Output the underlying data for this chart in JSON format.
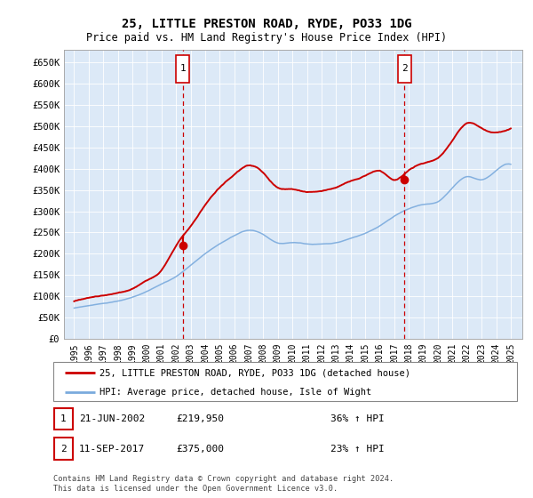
{
  "title": "25, LITTLE PRESTON ROAD, RYDE, PO33 1DG",
  "subtitle": "Price paid vs. HM Land Registry's House Price Index (HPI)",
  "title_fontsize": 10,
  "subtitle_fontsize": 8.5,
  "plot_bg_color": "#dce9f7",
  "ylim": [
    0,
    680000
  ],
  "yticks": [
    0,
    50000,
    100000,
    150000,
    200000,
    250000,
    300000,
    350000,
    400000,
    450000,
    500000,
    550000,
    600000,
    650000
  ],
  "ytick_labels": [
    "£0",
    "£50K",
    "£100K",
    "£150K",
    "£200K",
    "£250K",
    "£300K",
    "£350K",
    "£400K",
    "£450K",
    "£500K",
    "£550K",
    "£600K",
    "£650K"
  ],
  "sale1_date": "21-JUN-2002",
  "sale1_price_str": "£219,950",
  "sale1_hpi_pct": "36% ↑ HPI",
  "sale2_date": "11-SEP-2017",
  "sale2_price_str": "£375,000",
  "sale2_hpi_pct": "23% ↑ HPI",
  "legend_line1": "25, LITTLE PRESTON ROAD, RYDE, PO33 1DG (detached house)",
  "legend_line2": "HPI: Average price, detached house, Isle of Wight",
  "footer_line1": "Contains HM Land Registry data © Crown copyright and database right 2024.",
  "footer_line2": "This data is licensed under the Open Government Licence v3.0.",
  "marker1_x": 2002.47,
  "marker1_y": 219950,
  "marker2_x": 2017.69,
  "marker2_y": 375000,
  "vline1_x": 2002.47,
  "vline2_x": 2017.69,
  "red_color": "#cc0000",
  "blue_color": "#7aaadd",
  "hpi_years": [
    1995,
    1996,
    1997,
    1998,
    1999,
    2000,
    2001,
    2002,
    2003,
    2004,
    2005,
    2006,
    2007,
    2008,
    2009,
    2010,
    2011,
    2012,
    2013,
    2014,
    2015,
    2016,
    2017,
    2018,
    2019,
    2020,
    2021,
    2022,
    2023,
    2024,
    2025
  ],
  "hpi_vals": [
    72000,
    78000,
    83000,
    89000,
    98000,
    112000,
    130000,
    148000,
    175000,
    202000,
    225000,
    245000,
    258000,
    248000,
    228000,
    228000,
    225000,
    225000,
    228000,
    238000,
    250000,
    268000,
    290000,
    308000,
    318000,
    325000,
    358000,
    385000,
    378000,
    400000,
    415000
  ],
  "red_years": [
    1995,
    1996,
    1997,
    1998,
    1999,
    2000,
    2001,
    2002,
    2003,
    2004,
    2005,
    2006,
    2007,
    2008,
    2009,
    2010,
    2011,
    2012,
    2013,
    2014,
    2015,
    2016,
    2017,
    2018,
    2019,
    2020,
    2021,
    2022,
    2023,
    2024,
    2025
  ],
  "red_vals": [
    88000,
    95000,
    102000,
    109000,
    120000,
    138000,
    162000,
    219950,
    268000,
    318000,
    358000,
    388000,
    408000,
    392000,
    358000,
    355000,
    350000,
    352000,
    358000,
    372000,
    385000,
    395000,
    375000,
    398000,
    415000,
    428000,
    468000,
    510000,
    498000,
    488000,
    498000
  ],
  "xlim": [
    1994.3,
    2025.8
  ]
}
